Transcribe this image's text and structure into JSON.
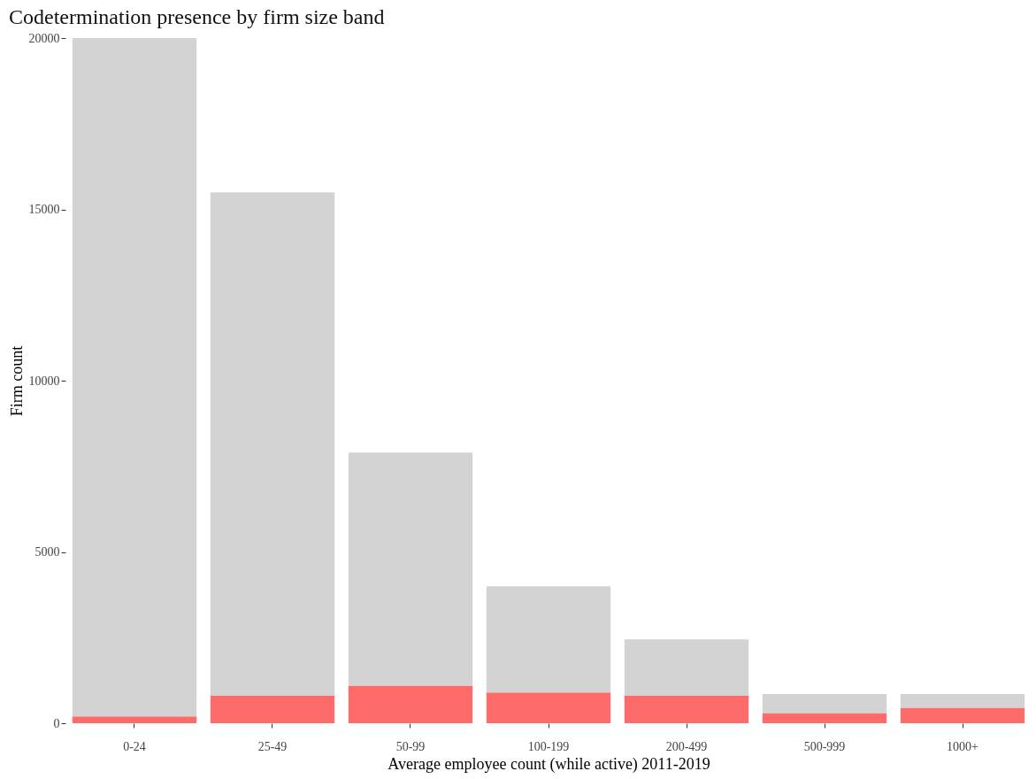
{
  "chart_data": {
    "type": "bar",
    "title": "Codetermination presence by firm size band",
    "xlabel": "Average employee count (while active) 2011-2019",
    "ylabel": "Firm count",
    "categories": [
      "0-24",
      "25-49",
      "50-99",
      "100-199",
      "200-499",
      "500-999",
      "1000+"
    ],
    "stacked": true,
    "series": [
      {
        "color": "#fe6b6b",
        "values": [
          200,
          800,
          1100,
          900,
          800,
          300,
          450
        ]
      },
      {
        "color": "#d3d3d3",
        "values": [
          19800,
          14700,
          6800,
          3100,
          1650,
          550,
          400
        ]
      }
    ],
    "ylim": [
      0,
      20000
    ],
    "yticks": [
      0,
      5000,
      10000,
      15000,
      20000
    ],
    "grid": false,
    "legend": false
  }
}
